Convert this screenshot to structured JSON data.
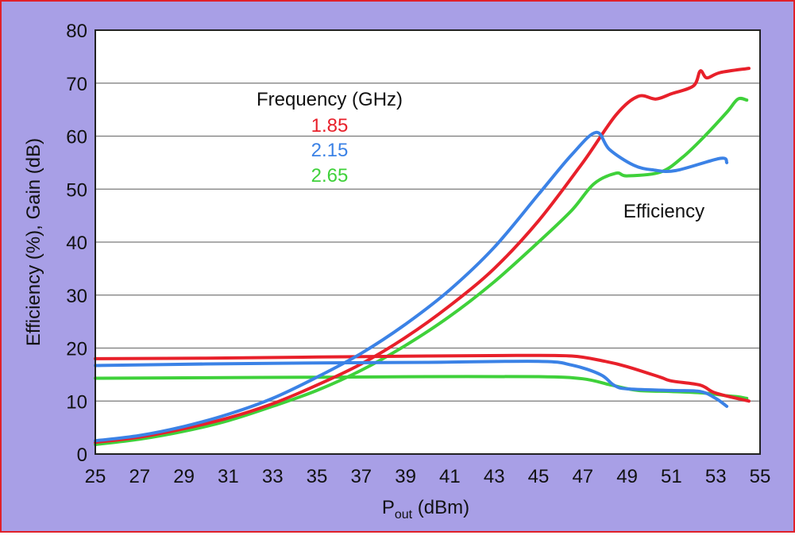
{
  "chart_data": {
    "type": "line",
    "xlabel_main": "P",
    "xlabel_sub": "out",
    "xlabel_unit": " (dBm)",
    "ylabel": "Efficiency (%), Gain (dB)",
    "xlim": [
      25,
      55
    ],
    "ylim": [
      0,
      80
    ],
    "x_ticks": [
      "25",
      "27",
      "29",
      "31",
      "33",
      "35",
      "37",
      "39",
      "41",
      "43",
      "45",
      "47",
      "49",
      "51",
      "53",
      "55"
    ],
    "y_ticks": [
      "0",
      "10",
      "20",
      "30",
      "40",
      "50",
      "60",
      "70",
      "80"
    ],
    "grid": "horizontal",
    "legend_title": "Frequency (GHz)",
    "annotation": "Efficiency",
    "colors": {
      "1.85": "#e8202a",
      "2.15": "#3b82e6",
      "2.65": "#3fd13a",
      "background": "#a89fe6",
      "plot": "#ffffff"
    },
    "series": [
      {
        "name": "1.85",
        "color": "#e8202a",
        "efficiency": [
          [
            25,
            2.2
          ],
          [
            27,
            3.2
          ],
          [
            29,
            4.8
          ],
          [
            31,
            6.8
          ],
          [
            33,
            9.5
          ],
          [
            35,
            13
          ],
          [
            37,
            17
          ],
          [
            39,
            22
          ],
          [
            41,
            28
          ],
          [
            43,
            35
          ],
          [
            45,
            44
          ],
          [
            47,
            55
          ],
          [
            48.5,
            64
          ],
          [
            49.5,
            67.5
          ],
          [
            50.3,
            67
          ],
          [
            51,
            68
          ],
          [
            52,
            69.5
          ],
          [
            52.3,
            72.3
          ],
          [
            52.6,
            71
          ],
          [
            53.2,
            72
          ],
          [
            54.5,
            72.8
          ]
        ],
        "gain": [
          [
            25,
            18
          ],
          [
            30,
            18.1
          ],
          [
            35,
            18.3
          ],
          [
            40,
            18.5
          ],
          [
            44,
            18.6
          ],
          [
            46.5,
            18.5
          ],
          [
            48,
            17.5
          ],
          [
            49,
            16.5
          ],
          [
            50.5,
            14.5
          ],
          [
            51,
            13.8
          ],
          [
            52.3,
            13
          ],
          [
            53,
            11.5
          ],
          [
            54.5,
            10
          ]
        ]
      },
      {
        "name": "2.15",
        "color": "#3b82e6",
        "efficiency": [
          [
            25,
            2.5
          ],
          [
            27,
            3.5
          ],
          [
            29,
            5.2
          ],
          [
            31,
            7.5
          ],
          [
            33,
            10.5
          ],
          [
            35,
            14.5
          ],
          [
            37,
            19
          ],
          [
            39,
            24.5
          ],
          [
            41,
            31
          ],
          [
            43,
            39
          ],
          [
            45,
            49
          ],
          [
            46.5,
            56.5
          ],
          [
            47.6,
            60.7
          ],
          [
            48.2,
            57.5
          ],
          [
            49.3,
            54.5
          ],
          [
            50.2,
            53.6
          ],
          [
            51.2,
            53.5
          ],
          [
            53.2,
            55.8
          ],
          [
            53.5,
            55
          ]
        ],
        "gain": [
          [
            25,
            16.7
          ],
          [
            30,
            17
          ],
          [
            35,
            17.2
          ],
          [
            40,
            17.3
          ],
          [
            45,
            17.5
          ],
          [
            46.5,
            16.8
          ],
          [
            47.8,
            15
          ],
          [
            48.4,
            13
          ],
          [
            49,
            12.3
          ],
          [
            51,
            12
          ],
          [
            52.3,
            11.8
          ],
          [
            53,
            10.5
          ],
          [
            53.5,
            9
          ]
        ]
      },
      {
        "name": "2.65",
        "color": "#3fd13a",
        "efficiency": [
          [
            25,
            1.8
          ],
          [
            27,
            2.8
          ],
          [
            29,
            4.3
          ],
          [
            31,
            6.3
          ],
          [
            33,
            9
          ],
          [
            35,
            12
          ],
          [
            37,
            15.8
          ],
          [
            39,
            20.5
          ],
          [
            41,
            26
          ],
          [
            43,
            32.5
          ],
          [
            45,
            40
          ],
          [
            46.5,
            46
          ],
          [
            47.5,
            51
          ],
          [
            48.5,
            53
          ],
          [
            49,
            52.5
          ],
          [
            50.5,
            53.2
          ],
          [
            51.5,
            56
          ],
          [
            52.5,
            60
          ],
          [
            53.5,
            64.5
          ],
          [
            54,
            67
          ],
          [
            54.4,
            66.8
          ]
        ],
        "gain": [
          [
            25,
            14.3
          ],
          [
            30,
            14.4
          ],
          [
            35,
            14.5
          ],
          [
            40,
            14.6
          ],
          [
            45,
            14.6
          ],
          [
            47,
            14.2
          ],
          [
            48.3,
            13
          ],
          [
            49.5,
            12
          ],
          [
            51,
            11.8
          ],
          [
            52.5,
            11.5
          ],
          [
            53.5,
            11
          ],
          [
            54,
            10.8
          ],
          [
            54.4,
            10.5
          ]
        ]
      }
    ]
  }
}
